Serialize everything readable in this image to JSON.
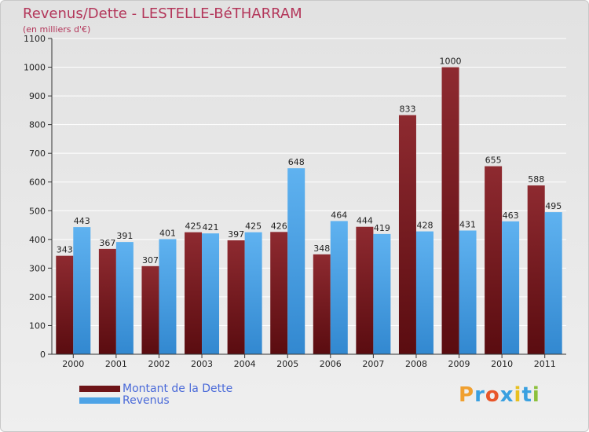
{
  "header": {
    "title": "Revenus/Dette - LESTELLE-BéTHARRAM",
    "subtitle": "(en milliers d'€)"
  },
  "chart_data": {
    "type": "bar",
    "title": "Revenus/Dette - LESTELLE-BéTHARRAM",
    "subtitle": "(en milliers d'€)",
    "categories": [
      "2000",
      "2001",
      "2002",
      "2003",
      "2004",
      "2005",
      "2006",
      "2007",
      "2008",
      "2009",
      "2010",
      "2011"
    ],
    "series": [
      {
        "name": "Montant de la Dette",
        "color": "#7a1a1f",
        "values": [
          343,
          367,
          307,
          425,
          397,
          426,
          348,
          444,
          833,
          1000,
          655,
          588
        ]
      },
      {
        "name": "Revenus",
        "color": "#4da3e6",
        "values": [
          443,
          391,
          401,
          421,
          425,
          648,
          464,
          419,
          428,
          431,
          463,
          495
        ]
      }
    ],
    "yticks": [
      0,
      100,
      200,
      300,
      400,
      500,
      600,
      700,
      800,
      900,
      1000,
      1100
    ],
    "ylim": [
      0,
      1100
    ],
    "grid": true,
    "legend": "bottom-left"
  },
  "legend": {
    "items": [
      {
        "label": "Montant de la Dette",
        "color": "#6e1418"
      },
      {
        "label": "Revenus",
        "color": "#4da3e6"
      }
    ]
  },
  "logo": {
    "letters": [
      "P",
      "r",
      "o",
      "x",
      "i",
      "t",
      "i"
    ],
    "colors": [
      "#f0a030",
      "#3aa0e0",
      "#e8562a",
      "#3aa0e0",
      "#e8c020",
      "#3aa0e0",
      "#8cc03c"
    ]
  }
}
